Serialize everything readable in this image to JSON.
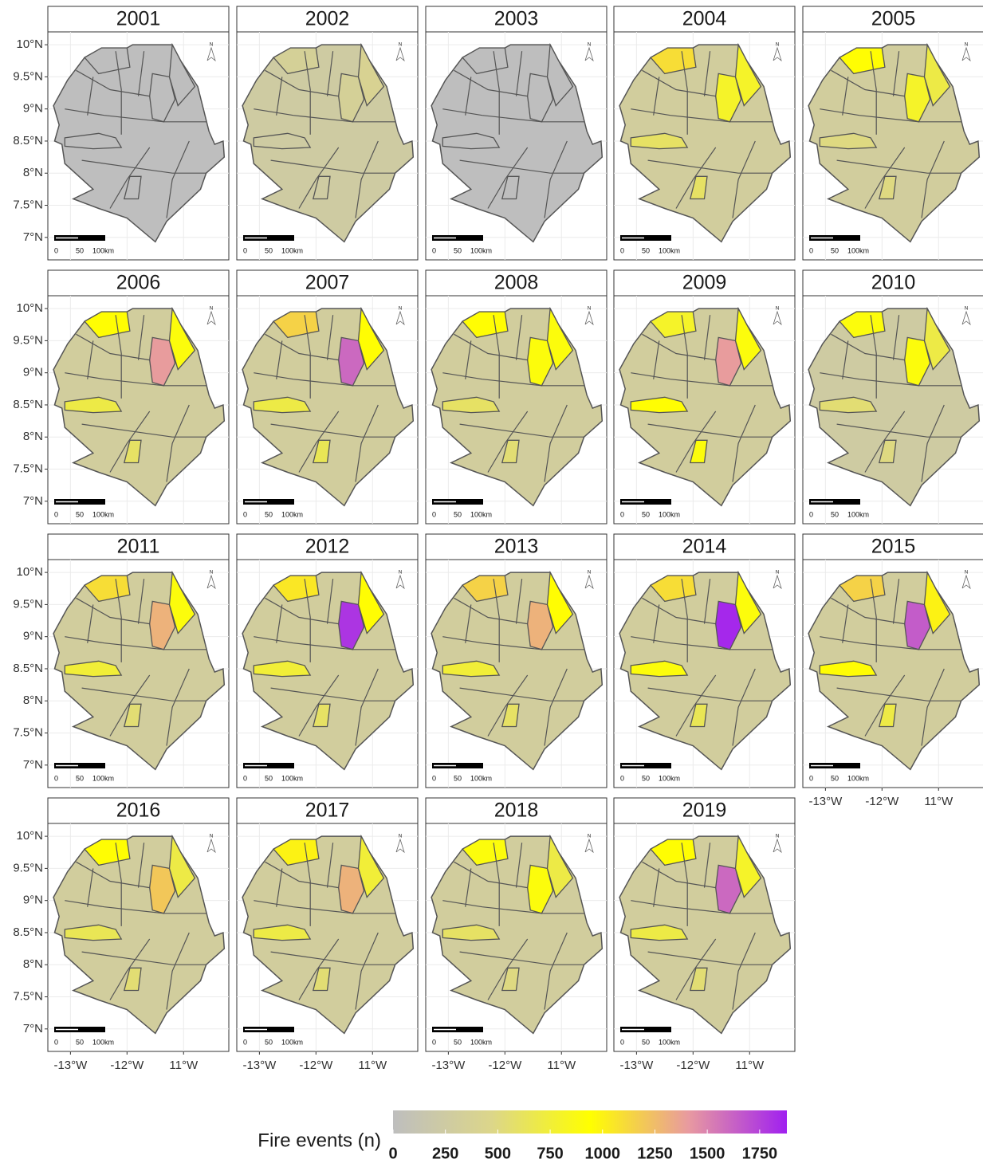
{
  "maps": {
    "lon_lim": [
      -13.4,
      -10.2
    ],
    "lat_lim": [
      6.65,
      10.2
    ],
    "lat_ticks": [
      {
        "value": 7,
        "label": "7°N"
      },
      {
        "value": 7.5,
        "label": "7.5°N"
      },
      {
        "value": 8,
        "label": "8°N"
      },
      {
        "value": 8.5,
        "label": "8.5°N"
      },
      {
        "value": 9,
        "label": "9°N"
      },
      {
        "value": 9.5,
        "label": "9.5°N"
      },
      {
        "value": 10,
        "label": "10°N"
      }
    ],
    "lon_ticks": [
      {
        "value": -13,
        "label": "-13°W"
      },
      {
        "value": -12,
        "label": "-12°W"
      },
      {
        "value": -11,
        "label": "11°W"
      }
    ],
    "scalebar_labels": [
      "0",
      "50",
      "100km"
    ],
    "north_label": "N",
    "panels": [
      {
        "title": "2001",
        "values": [
          0,
          0,
          0,
          0,
          0,
          0
        ]
      },
      {
        "title": "2002",
        "values": [
          250,
          350,
          350,
          400,
          250,
          250
        ]
      },
      {
        "title": "2003",
        "values": [
          0,
          0,
          0,
          0,
          0,
          0
        ]
      },
      {
        "title": "2004",
        "values": [
          300,
          800,
          1100,
          800,
          600,
          600
        ]
      },
      {
        "title": "2005",
        "values": [
          300,
          800,
          950,
          700,
          500,
          500
        ]
      },
      {
        "title": "2006",
        "values": [
          300,
          1400,
          950,
          900,
          700,
          600
        ]
      },
      {
        "title": "2007",
        "values": [
          300,
          1600,
          1150,
          950,
          700,
          650
        ]
      },
      {
        "title": "2008",
        "values": [
          300,
          900,
          950,
          900,
          600,
          550
        ]
      },
      {
        "title": "2009",
        "values": [
          300,
          1400,
          800,
          900,
          950,
          900
        ]
      },
      {
        "title": "2010",
        "values": [
          250,
          900,
          900,
          700,
          550,
          500
        ]
      },
      {
        "title": "2011",
        "values": [
          300,
          1300,
          1100,
          900,
          750,
          550
        ]
      },
      {
        "title": "2012",
        "values": [
          300,
          1800,
          1050,
          950,
          750,
          600
        ]
      },
      {
        "title": "2013",
        "values": [
          300,
          1300,
          1150,
          950,
          750,
          600
        ]
      },
      {
        "title": "2014",
        "values": [
          300,
          1850,
          1100,
          900,
          900,
          650
        ]
      },
      {
        "title": "2015",
        "values": [
          300,
          1650,
          1150,
          1000,
          950,
          700
        ]
      },
      {
        "title": "2016",
        "values": [
          300,
          1200,
          950,
          700,
          650,
          550
        ]
      },
      {
        "title": "2017",
        "values": [
          300,
          1300,
          1000,
          750,
          700,
          550
        ]
      },
      {
        "title": "2018",
        "values": [
          300,
          900,
          900,
          700,
          600,
          500
        ]
      },
      {
        "title": "2019",
        "values": [
          300,
          1600,
          950,
          800,
          700,
          550
        ]
      }
    ]
  },
  "legend": {
    "title": "Fire events (n)",
    "lim": [
      0,
      1880
    ],
    "ticks": [
      0,
      250,
      500,
      750,
      1000,
      1250,
      1500,
      1750
    ],
    "colors": [
      "#bebebe",
      "#dcd68a",
      "#ffff00",
      "#e89aa0",
      "#a020f0"
    ]
  }
}
